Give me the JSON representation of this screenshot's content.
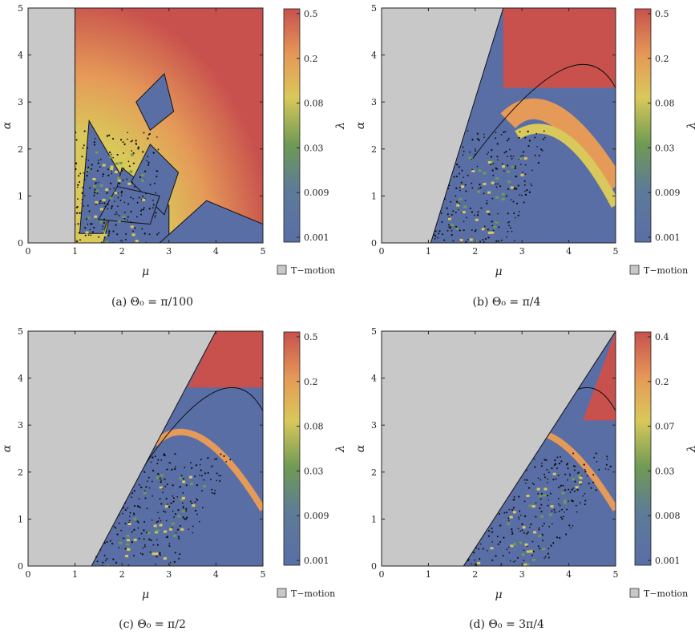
{
  "chart_data": [
    {
      "type": "heatmap",
      "caption": "(a) Θ₀ = π/100",
      "xlabel": "μ",
      "ylabel": "α",
      "xlim": [
        0,
        5
      ],
      "ylim": [
        0,
        5
      ],
      "xticks": [
        "0",
        "1",
        "2",
        "3",
        "4",
        "5"
      ],
      "yticks": [
        "0",
        "1",
        "2",
        "3",
        "4",
        "5"
      ],
      "colorbar": {
        "label": "λ",
        "ticks": [
          "0.5",
          "0.2",
          "0.08",
          "0.03",
          "0.009",
          "0.001"
        ]
      },
      "legend": "T−motion",
      "grey_boundary": {
        "x_bottom": 1.0,
        "x_top": 1.0
      },
      "red_region": {
        "x_bottom": 1.0,
        "x_top": 5.0,
        "y_start": 5.0
      }
    },
    {
      "type": "heatmap",
      "caption": "(b) Θ₀ = π/4",
      "xlabel": "μ",
      "ylabel": "α",
      "xlim": [
        0,
        5
      ],
      "ylim": [
        0,
        5
      ],
      "xticks": [
        "0",
        "1",
        "2",
        "3",
        "4",
        "5"
      ],
      "yticks": [
        "0",
        "1",
        "2",
        "3",
        "4",
        "5"
      ],
      "colorbar": {
        "label": "λ",
        "ticks": [
          "0.5",
          "0.2",
          "0.08",
          "0.03",
          "0.009",
          "0.001"
        ]
      },
      "legend": "T−motion",
      "grey_boundary": {
        "x_bottom": 1.05,
        "x_top": 2.6
      },
      "red_region": {
        "x_bottom": 2.6,
        "x_top": 5.0,
        "y_start": 3.3
      }
    },
    {
      "type": "heatmap",
      "caption": "(c) Θ₀ = π/2",
      "xlabel": "μ",
      "ylabel": "α",
      "xlim": [
        0,
        5
      ],
      "ylim": [
        0,
        5
      ],
      "xticks": [
        "0",
        "1",
        "2",
        "3",
        "4",
        "5"
      ],
      "yticks": [
        "0",
        "1",
        "2",
        "3",
        "4",
        "5"
      ],
      "colorbar": {
        "label": "λ",
        "ticks": [
          "0.5",
          "0.2",
          "0.08",
          "0.03",
          "0.009",
          "0.001"
        ]
      },
      "legend": "T−motion",
      "grey_boundary": {
        "x_bottom": 1.35,
        "x_top": 4.0
      },
      "red_region": {
        "x_bottom": 3.4,
        "x_top": 5.0,
        "y_start": 3.8
      }
    },
    {
      "type": "heatmap",
      "caption": "(d) Θ₀ = 3π/4",
      "xlabel": "μ",
      "ylabel": "α",
      "xlim": [
        0,
        5
      ],
      "ylim": [
        0,
        5
      ],
      "xticks": [
        "0",
        "1",
        "2",
        "3",
        "4",
        "5"
      ],
      "yticks": [
        "0",
        "1",
        "2",
        "3",
        "4",
        "5"
      ],
      "colorbar": {
        "label": "λ",
        "ticks": [
          "0.4",
          "0.2",
          "0.07",
          "0.03",
          "0.008",
          "0.001"
        ]
      },
      "legend": "T−motion",
      "grey_boundary": {
        "x_bottom": 1.75,
        "x_top": 5.0
      },
      "red_region": {
        "x_bottom": 4.3,
        "x_top": 5.0,
        "y_start": 3.1
      }
    }
  ],
  "colors": {
    "grey": "#c8c8c8",
    "blue": "#5a6ea6",
    "yellow": "#d9c85a",
    "orange": "#e59a58",
    "red": "#c8514d",
    "green": "#6f9a55",
    "dots": "#111111"
  }
}
